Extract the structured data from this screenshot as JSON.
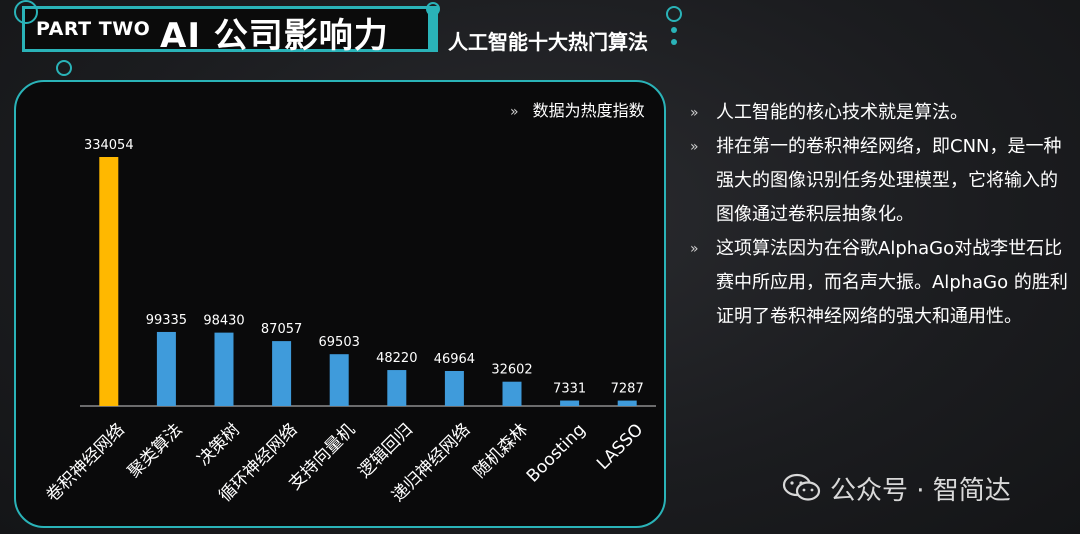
{
  "header": {
    "part": "PART TWO",
    "title": "AI 公司影响力",
    "subtitle": "人工智能十大热门算法"
  },
  "note": "数据为热度指数",
  "points": [
    "人工智能的核心技术就是算法。",
    "排在第一的卷积神经网络，即CNN，是一种强大的图像识别任务处理模型，它将输入的图像通过卷积层抽象化。",
    "这项算法因为在谷歌AlphaGo对战李世石比赛中所应用，而名声大振。AlphaGo 的胜利证明了卷积神经网络的强大和通用性。"
  ],
  "bullet_glyph": "»",
  "watermark": {
    "text": "公众号 · 智简达",
    "icon": "wechat-icon"
  },
  "colors": {
    "highlight": "#FFB800",
    "bar": "#3F9BDB",
    "accent": "#2AB3B8"
  },
  "chart_data": {
    "type": "bar",
    "title": "",
    "categories": [
      "卷积神经网络",
      "聚类算法",
      "决策树",
      "循环神经网络",
      "支持向量机",
      "逻辑回归",
      "递归神经网络",
      "随机森林",
      "Boosting",
      "LASSO"
    ],
    "values": [
      334054,
      99335,
      98430,
      87057,
      69503,
      48220,
      46964,
      32602,
      7331,
      7287
    ],
    "highlight_index": 0,
    "ylim": [
      0,
      334054
    ],
    "grid": false,
    "legend": "none"
  }
}
